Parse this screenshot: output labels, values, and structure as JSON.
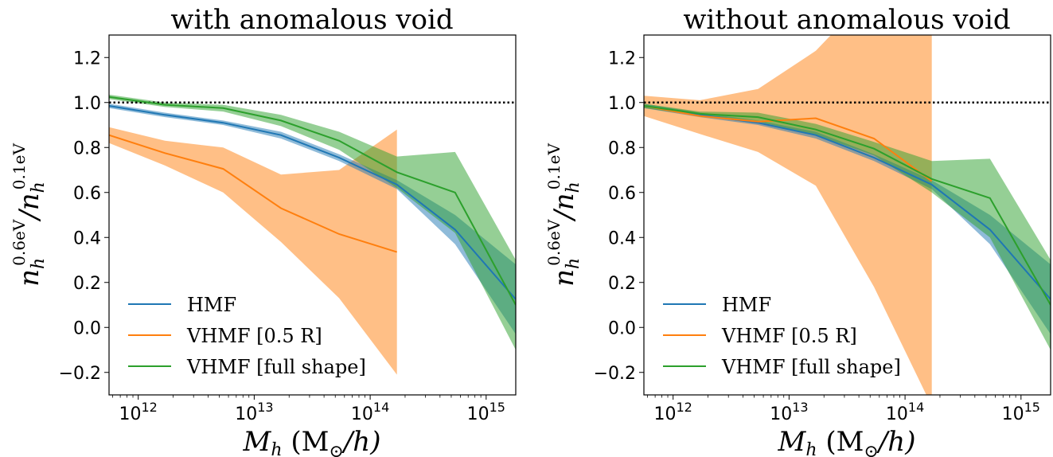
{
  "figure": {
    "xlabel": "M_h (M_⊙/h)",
    "ylabel": "n_h^0.6eV / n_h^0.1eV",
    "legend": [
      "HMF",
      "VHMF [0.5 R]",
      "VHMF [full shape]"
    ],
    "colors": {
      "hmf": "#1f77b4",
      "vhmf_half": "#ff7f0e",
      "vhmf_full": "#2ca02c",
      "reference": "#000000"
    }
  },
  "chart_data": [
    {
      "type": "line",
      "title": "with anomalous void",
      "xlabel": "M_h (M_⊙/h)",
      "ylabel": "n_h^0.6eV / n_h^0.1eV",
      "xscale": "log",
      "xlim": [
        560000000000.0,
        1800000000000000.0
      ],
      "ylim": [
        -0.3,
        1.3
      ],
      "xticks": [
        {
          "value": 1000000000000.0,
          "label": "10^12"
        },
        {
          "value": 10000000000000.0,
          "label": "10^13"
        },
        {
          "value": 100000000000000.0,
          "label": "10^14"
        },
        {
          "value": 1000000000000000.0,
          "label": "10^15"
        }
      ],
      "yticks": [
        -0.2,
        0.0,
        0.2,
        0.4,
        0.6,
        0.8,
        1.0,
        1.2
      ],
      "legend_position": "lower-left",
      "reference_line": {
        "y": 1.0,
        "style": "dotted"
      },
      "series": [
        {
          "name": "HMF",
          "color": "#1f77b4",
          "x": [
            560000000000.0,
            1700000000000.0,
            5400000000000.0,
            17000000000000.0,
            54000000000000.0,
            170000000000000.0,
            540000000000000.0,
            1800000000000000.0
          ],
          "y": [
            0.985,
            0.945,
            0.91,
            0.855,
            0.755,
            0.635,
            0.435,
            0.125
          ],
          "lower": [
            0.975,
            0.935,
            0.9,
            0.84,
            0.74,
            0.615,
            0.37,
            -0.03
          ],
          "upper": [
            0.995,
            0.955,
            0.92,
            0.87,
            0.77,
            0.655,
            0.5,
            0.28
          ]
        },
        {
          "name": "VHMF [0.5 R]",
          "color": "#ff7f0e",
          "x": [
            560000000000.0,
            1700000000000.0,
            5400000000000.0,
            17000000000000.0,
            54000000000000.0,
            170000000000000.0
          ],
          "y": [
            0.855,
            0.775,
            0.705,
            0.53,
            0.415,
            0.335
          ],
          "lower": [
            0.82,
            0.72,
            0.6,
            0.38,
            0.13,
            -0.21
          ],
          "upper": [
            0.89,
            0.83,
            0.8,
            0.68,
            0.7,
            0.88
          ]
        },
        {
          "name": "VHMF [full shape]",
          "color": "#2ca02c",
          "x": [
            560000000000.0,
            1700000000000.0,
            5400000000000.0,
            17000000000000.0,
            54000000000000.0,
            170000000000000.0,
            540000000000000.0,
            1800000000000000.0
          ],
          "y": [
            1.025,
            0.99,
            0.975,
            0.92,
            0.83,
            0.69,
            0.6,
            0.1
          ],
          "lower": [
            1.015,
            0.98,
            0.96,
            0.895,
            0.79,
            0.62,
            0.42,
            -0.1
          ],
          "upper": [
            1.035,
            1.0,
            0.99,
            0.945,
            0.87,
            0.76,
            0.78,
            0.3
          ]
        }
      ]
    },
    {
      "type": "line",
      "title": "without anomalous void",
      "xlabel": "M_h (M_⊙/h)",
      "ylabel": "n_h^0.6eV / n_h^0.1eV",
      "xscale": "log",
      "xlim": [
        560000000000.0,
        1800000000000000.0
      ],
      "ylim": [
        -0.3,
        1.3
      ],
      "xticks": [
        {
          "value": 1000000000000.0,
          "label": "10^12"
        },
        {
          "value": 10000000000000.0,
          "label": "10^13"
        },
        {
          "value": 100000000000000.0,
          "label": "10^14"
        },
        {
          "value": 1000000000000000.0,
          "label": "10^15"
        }
      ],
      "yticks": [
        -0.2,
        0.0,
        0.2,
        0.4,
        0.6,
        0.8,
        1.0,
        1.2
      ],
      "legend_position": "lower-left",
      "reference_line": {
        "y": 1.0,
        "style": "dotted"
      },
      "series": [
        {
          "name": "HMF",
          "color": "#1f77b4",
          "x": [
            560000000000.0,
            1700000000000.0,
            5400000000000.0,
            17000000000000.0,
            54000000000000.0,
            170000000000000.0,
            540000000000000.0,
            1800000000000000.0
          ],
          "y": [
            0.985,
            0.945,
            0.91,
            0.855,
            0.755,
            0.635,
            0.435,
            0.125
          ],
          "lower": [
            0.975,
            0.935,
            0.9,
            0.84,
            0.74,
            0.615,
            0.37,
            -0.03
          ],
          "upper": [
            0.995,
            0.955,
            0.92,
            0.87,
            0.77,
            0.655,
            0.5,
            0.28
          ]
        },
        {
          "name": "VHMF [0.5 R]",
          "color": "#ff7f0e",
          "x": [
            560000000000.0,
            1700000000000.0,
            5400000000000.0,
            17000000000000.0,
            54000000000000.0,
            170000000000000.0
          ],
          "y": [
            0.985,
            0.94,
            0.915,
            0.93,
            0.84,
            0.65
          ],
          "lower": [
            0.94,
            0.86,
            0.78,
            0.63,
            0.18,
            -0.35
          ],
          "upper": [
            1.03,
            1.01,
            1.06,
            1.23,
            1.5,
            1.5
          ]
        },
        {
          "name": "VHMF [full shape]",
          "color": "#2ca02c",
          "x": [
            560000000000.0,
            1700000000000.0,
            5400000000000.0,
            17000000000000.0,
            54000000000000.0,
            170000000000000.0,
            540000000000000.0,
            1800000000000000.0
          ],
          "y": [
            0.985,
            0.95,
            0.935,
            0.88,
            0.795,
            0.66,
            0.575,
            0.1
          ],
          "lower": [
            0.975,
            0.94,
            0.915,
            0.855,
            0.765,
            0.6,
            0.4,
            -0.1
          ],
          "upper": [
            0.995,
            0.96,
            0.955,
            0.905,
            0.825,
            0.74,
            0.75,
            0.3
          ]
        }
      ]
    }
  ]
}
